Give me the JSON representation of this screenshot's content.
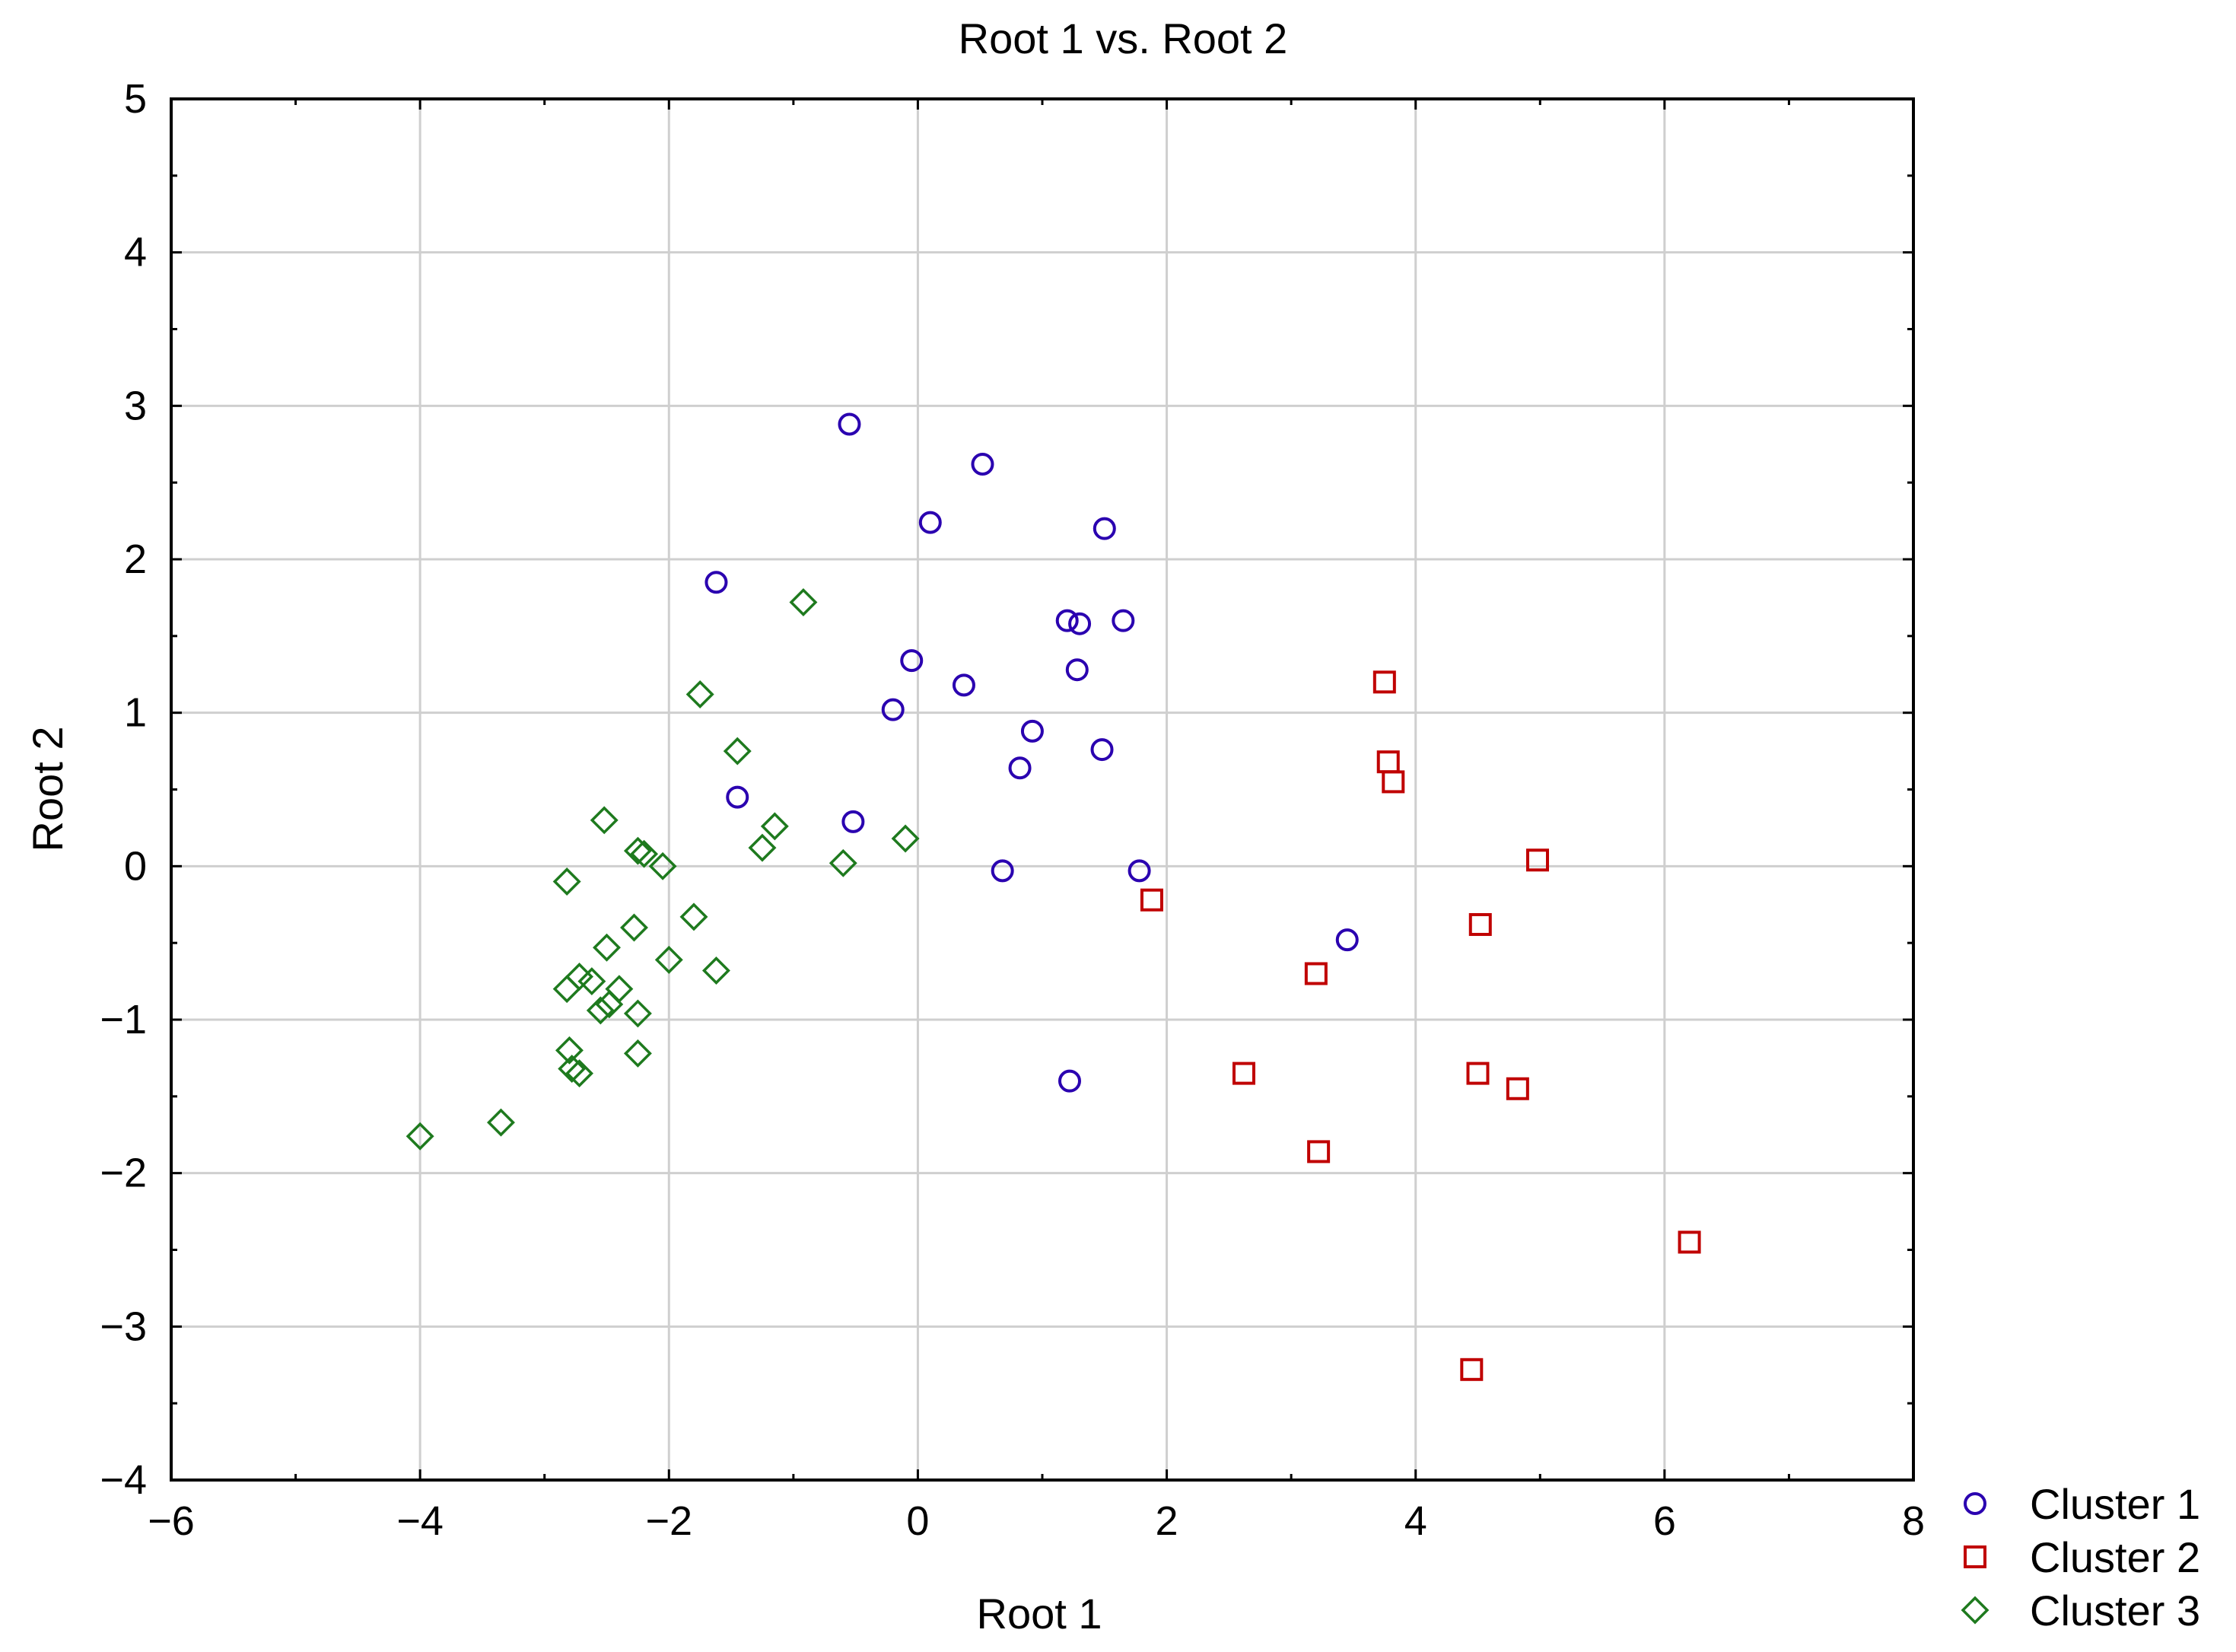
{
  "chart_data": {
    "type": "scatter",
    "title": "Root 1 vs. Root 2",
    "xlabel": "Root 1",
    "ylabel": "Root 2",
    "xlim": [
      -6,
      8
    ],
    "ylim": [
      -4,
      5
    ],
    "xticks": [
      -6,
      -4,
      -2,
      0,
      2,
      4,
      6,
      8
    ],
    "xtick_labels": [
      "−6",
      "−4",
      "−2",
      "0",
      "2",
      "4",
      "6",
      "8"
    ],
    "yticks": [
      5,
      4,
      3,
      2,
      1,
      0,
      -1,
      -2,
      -3,
      -4
    ],
    "ytick_labels": [
      "5",
      "4",
      "3",
      "2",
      "1",
      "0",
      "−1",
      "−2",
      "−3",
      "−4"
    ],
    "grid": true,
    "legend": "bottom-right, outside plot",
    "series": [
      {
        "name": "Cluster 1",
        "marker": "circle",
        "color": "#2a00b0",
        "points": [
          [
            -0.55,
            2.88
          ],
          [
            0.52,
            2.62
          ],
          [
            0.1,
            2.24
          ],
          [
            1.5,
            2.2
          ],
          [
            -1.62,
            1.85
          ],
          [
            1.2,
            1.6
          ],
          [
            1.3,
            1.58
          ],
          [
            1.65,
            1.6
          ],
          [
            -0.05,
            1.34
          ],
          [
            1.28,
            1.28
          ],
          [
            0.37,
            1.18
          ],
          [
            -0.2,
            1.02
          ],
          [
            0.92,
            0.88
          ],
          [
            1.48,
            0.76
          ],
          [
            0.82,
            0.64
          ],
          [
            -1.45,
            0.45
          ],
          [
            -0.52,
            0.29
          ],
          [
            0.68,
            -0.03
          ],
          [
            1.78,
            -0.03
          ],
          [
            3.45,
            -0.48
          ],
          [
            1.22,
            -1.4
          ]
        ]
      },
      {
        "name": "Cluster 2",
        "marker": "square",
        "color": "#c00000",
        "points": [
          [
            3.75,
            1.2
          ],
          [
            3.78,
            0.68
          ],
          [
            3.82,
            0.55
          ],
          [
            4.98,
            0.04
          ],
          [
            1.88,
            -0.22
          ],
          [
            4.52,
            -0.38
          ],
          [
            3.2,
            -0.7
          ],
          [
            2.62,
            -1.35
          ],
          [
            4.5,
            -1.35
          ],
          [
            4.82,
            -1.45
          ],
          [
            3.22,
            -1.86
          ],
          [
            6.2,
            -2.45
          ],
          [
            4.45,
            -3.28
          ]
        ]
      },
      {
        "name": "Cluster 3",
        "marker": "diamond",
        "color": "#1e7a1e",
        "points": [
          [
            -0.92,
            1.72
          ],
          [
            -1.75,
            1.12
          ],
          [
            -1.45,
            0.75
          ],
          [
            -2.52,
            0.3
          ],
          [
            -1.15,
            0.26
          ],
          [
            -1.25,
            0.12
          ],
          [
            -2.25,
            0.1
          ],
          [
            -2.2,
            0.08
          ],
          [
            -0.6,
            0.02
          ],
          [
            -0.1,
            0.18
          ],
          [
            -2.05,
            0.0
          ],
          [
            -2.82,
            -0.1
          ],
          [
            -1.8,
            -0.33
          ],
          [
            -2.28,
            -0.4
          ],
          [
            -2.5,
            -0.53
          ],
          [
            -2.0,
            -0.61
          ],
          [
            -1.62,
            -0.68
          ],
          [
            -2.72,
            -0.72
          ],
          [
            -2.62,
            -0.75
          ],
          [
            -2.82,
            -0.8
          ],
          [
            -2.4,
            -0.8
          ],
          [
            -2.48,
            -0.9
          ],
          [
            -2.55,
            -0.94
          ],
          [
            -2.25,
            -0.96
          ],
          [
            -2.8,
            -1.2
          ],
          [
            -2.25,
            -1.22
          ],
          [
            -2.78,
            -1.32
          ],
          [
            -2.72,
            -1.35
          ],
          [
            -3.35,
            -1.67
          ],
          [
            -4.0,
            -1.76
          ]
        ]
      }
    ]
  }
}
